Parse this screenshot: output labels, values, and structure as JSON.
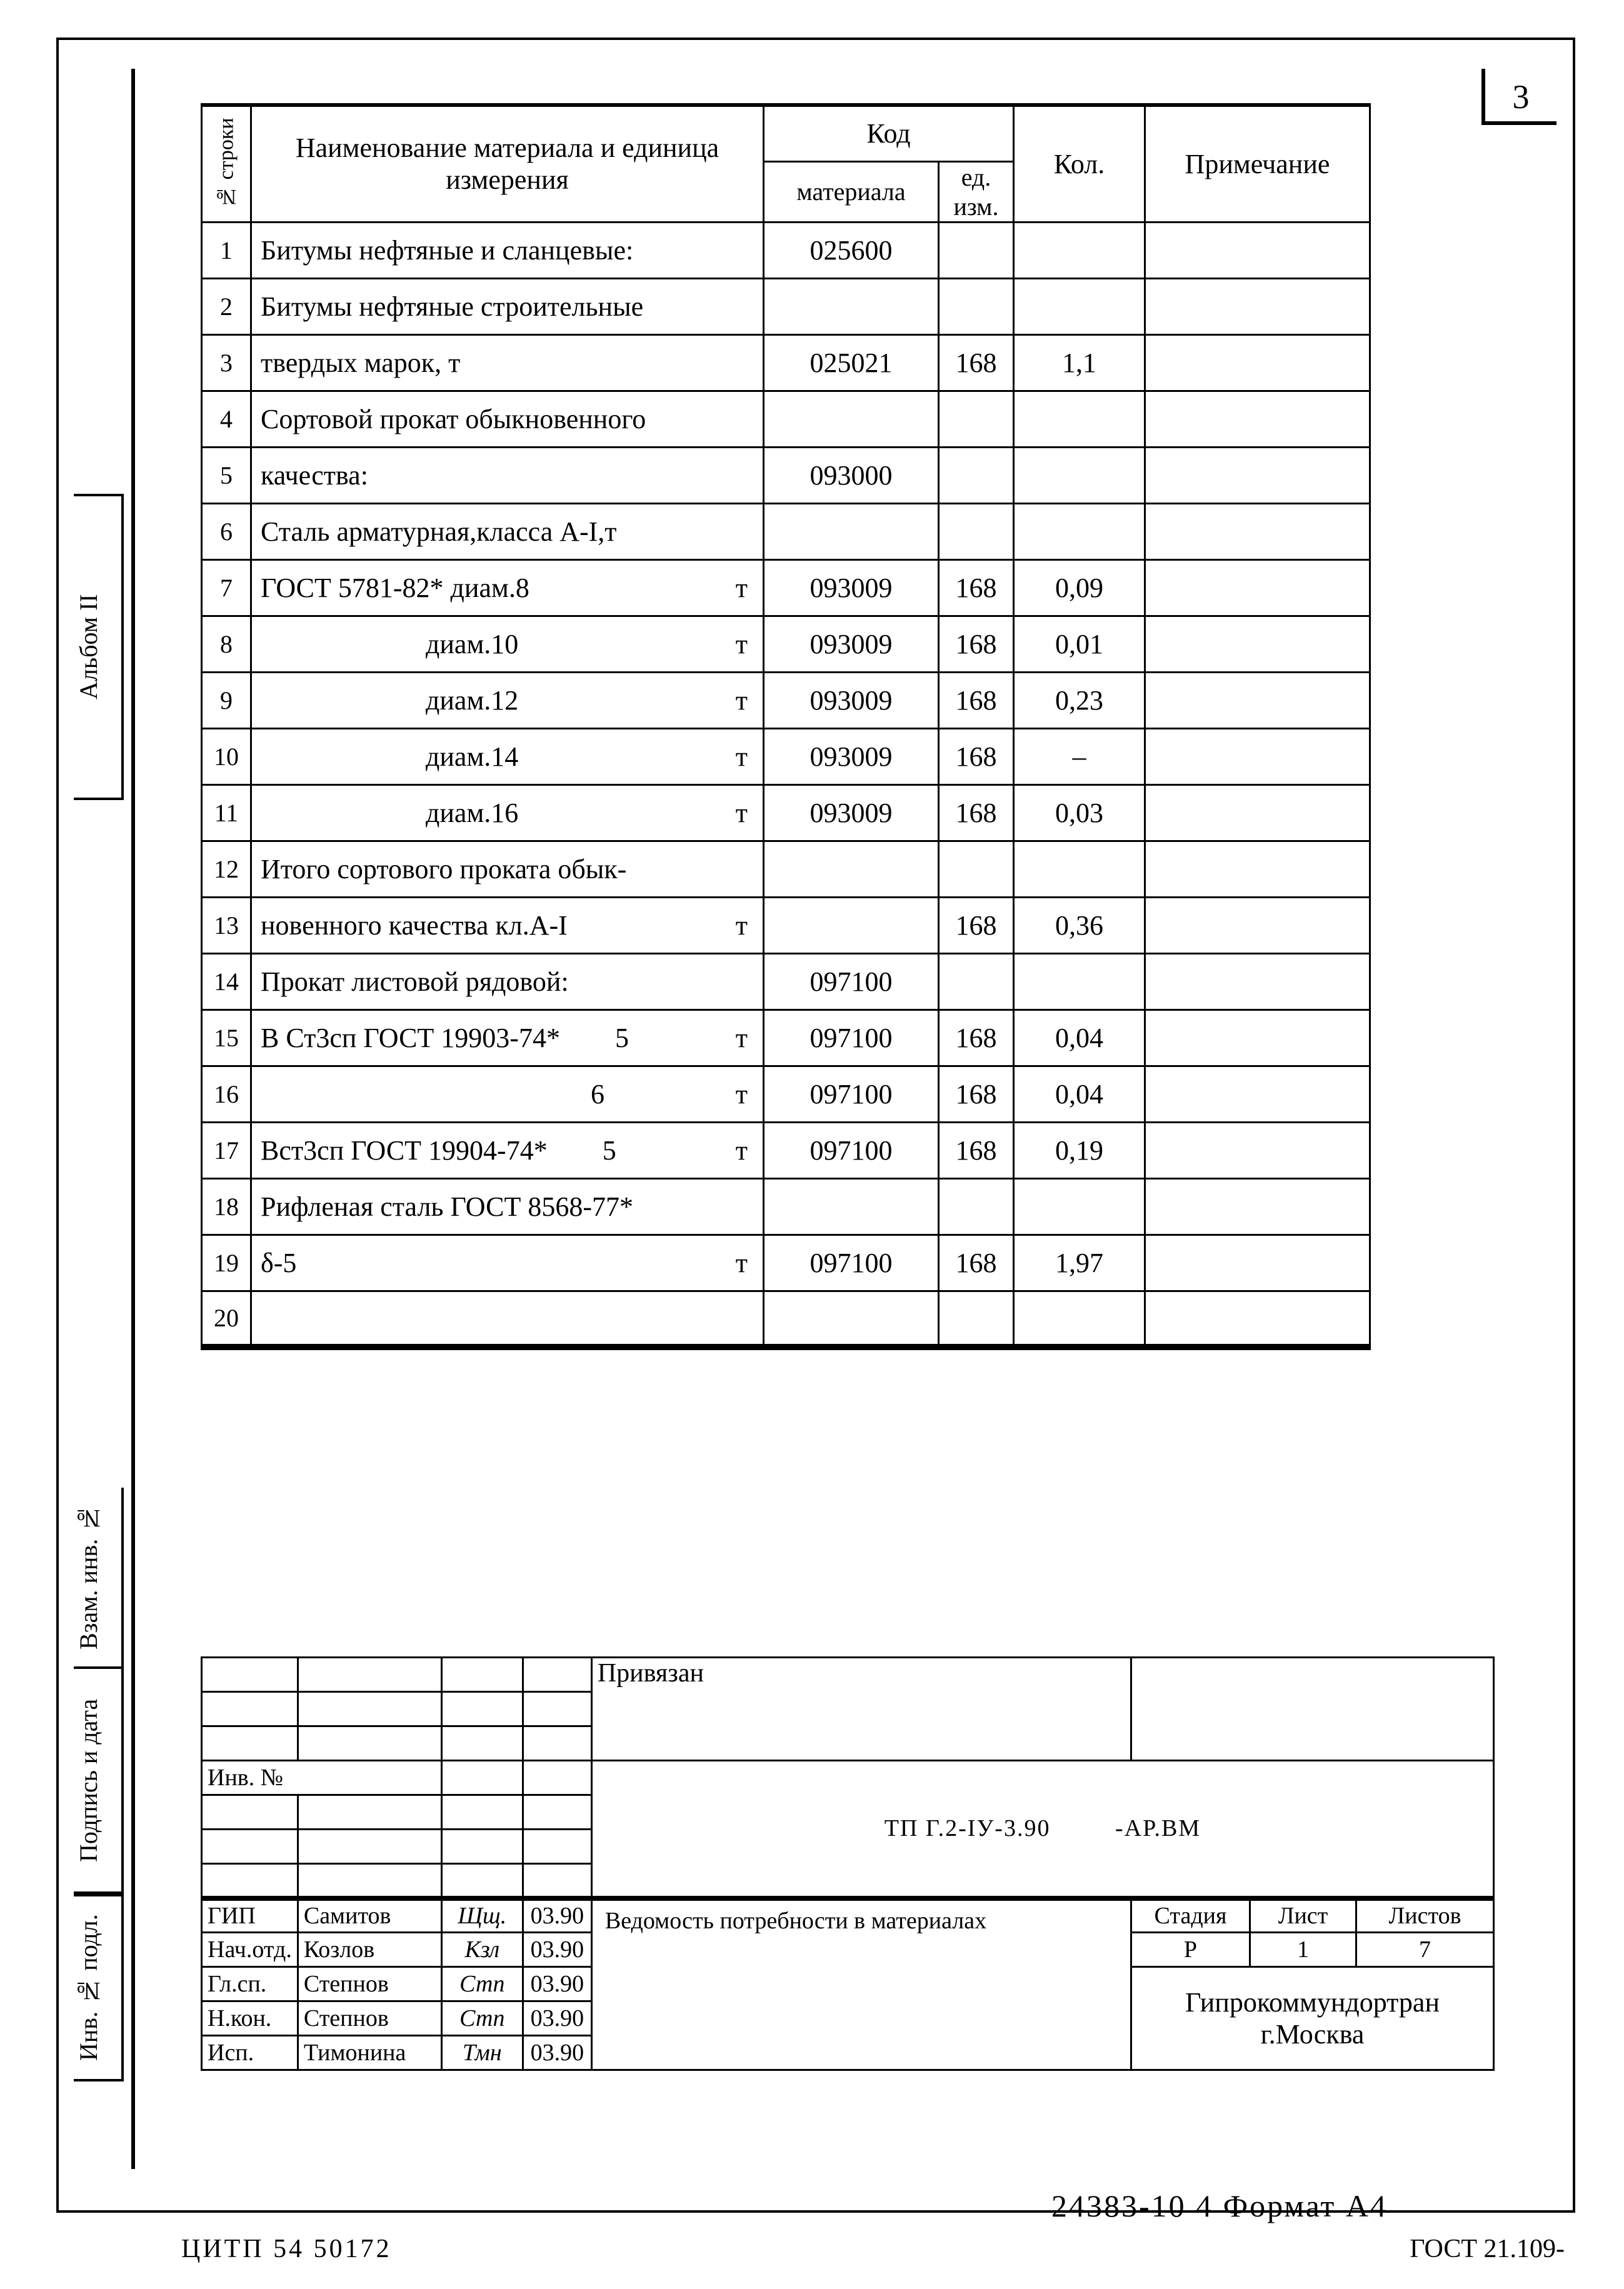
{
  "page_number": "3",
  "side": {
    "album": "Альбом II",
    "vzam": "Взам. инв. №",
    "podp": "Подпись и дата",
    "invp": "Инв. № подл."
  },
  "table": {
    "head": {
      "stroki": "№ строки",
      "name": "Наименование материала и единица измерения",
      "kod": "Код",
      "kod_material": "материала",
      "kod_ed": "ед. изм.",
      "kol": "Кол.",
      "prim": "Примечание"
    },
    "rows": [
      {
        "n": "1",
        "name": "Битумы нефтяные и сланцевые:",
        "unit": "",
        "mat": "025600",
        "ed": "",
        "kol": "",
        "prim": ""
      },
      {
        "n": "2",
        "name": "Битумы нефтяные строительные",
        "unit": "",
        "mat": "",
        "ed": "",
        "kol": "",
        "prim": ""
      },
      {
        "n": "3",
        "name": "твердых марок, т",
        "unit": "",
        "mat": "025021",
        "ed": "168",
        "kol": "1,1",
        "prim": ""
      },
      {
        "n": "4",
        "name": "Сортовой прокат обыкновенного",
        "unit": "",
        "mat": "",
        "ed": "",
        "kol": "",
        "prim": ""
      },
      {
        "n": "5",
        "name": "качества:",
        "unit": "",
        "mat": "093000",
        "ed": "",
        "kol": "",
        "prim": ""
      },
      {
        "n": "6",
        "name": "Сталь арматурная,класса А-I,т",
        "unit": "",
        "mat": "",
        "ed": "",
        "kol": "",
        "prim": ""
      },
      {
        "n": "7",
        "name": "ГОСТ 5781-82* диам.8",
        "unit": "т",
        "mat": "093009",
        "ed": "168",
        "kol": "0,09",
        "prim": ""
      },
      {
        "n": "8",
        "name": "      диам.10",
        "unit": "т",
        "mat": "093009",
        "ed": "168",
        "kol": "0,01",
        "prim": ""
      },
      {
        "n": "9",
        "name": "      диам.12",
        "unit": "т",
        "mat": "093009",
        "ed": "168",
        "kol": "0,23",
        "prim": ""
      },
      {
        "n": "10",
        "name": "      диам.14",
        "unit": "т",
        "mat": "093009",
        "ed": "168",
        "kol": "–",
        "prim": ""
      },
      {
        "n": "11",
        "name": "      диам.16",
        "unit": "т",
        "mat": "093009",
        "ed": "168",
        "kol": "0,03",
        "prim": ""
      },
      {
        "n": "12",
        "name": "Итого сортового проката обык-",
        "unit": "",
        "mat": "",
        "ed": "",
        "kol": "",
        "prim": ""
      },
      {
        "n": "13",
        "name": "новенного качества кл.А-I",
        "unit": "т",
        "mat": "",
        "ed": "168",
        "kol": "0,36",
        "prim": ""
      },
      {
        "n": "14",
        "name": "Прокат листовой рядовой:",
        "unit": "",
        "mat": "097100",
        "ed": "",
        "kol": "",
        "prim": ""
      },
      {
        "n": "15",
        "name": "В Ст3сп ГОСТ 19903-74*  5",
        "unit": "т",
        "mat": "097100",
        "ed": "168",
        "kol": "0,04",
        "prim": ""
      },
      {
        "n": "16",
        "name": "            6",
        "unit": "т",
        "mat": "097100",
        "ed": "168",
        "kol": "0,04",
        "prim": ""
      },
      {
        "n": "17",
        "name": "Вст3сп ГОСТ 19904-74*  5",
        "unit": "т",
        "mat": "097100",
        "ed": "168",
        "kol": "0,19",
        "prim": ""
      },
      {
        "n": "18",
        "name": "Рифленая сталь ГОСТ 8568-77*",
        "unit": "",
        "mat": "",
        "ed": "",
        "kol": "",
        "prim": ""
      },
      {
        "n": "19",
        "name": "δ-5",
        "unit": "т",
        "mat": "097100",
        "ed": "168",
        "kol": "1,97",
        "prim": ""
      },
      {
        "n": "20",
        "name": "",
        "unit": "",
        "mat": "",
        "ed": "",
        "kol": "",
        "prim": ""
      }
    ]
  },
  "titleblock": {
    "privyazan": "Привязан",
    "inv_no": "Инв. №",
    "doc_code": "ТП Г.2-IУ-3.90",
    "doc_suffix": "-АР.ВМ",
    "title": "Ведомость потребности в материалах",
    "stadiya_h": "Стадия",
    "list_h": "Лист",
    "listov_h": "Листов",
    "stadiya": "Р",
    "list": "1",
    "listov": "7",
    "org": "Гипрокоммундортран г.Москва",
    "roles": [
      {
        "role": "ГИП",
        "name": "Самитов",
        "sig": "Щщ.",
        "date": "03.90"
      },
      {
        "role": "Нач.отд.",
        "name": "Козлов",
        "sig": "Кзл",
        "date": "03.90"
      },
      {
        "role": "Гл.сп.",
        "name": "Степнов",
        "sig": "Стп",
        "date": "03.90"
      },
      {
        "role": "Н.кон.",
        "name": "Степнов",
        "sig": "Стп",
        "date": "03.90"
      },
      {
        "role": "Исп.",
        "name": "Тимонина",
        "sig": "Тмн",
        "date": "03.90"
      }
    ]
  },
  "footer": {
    "left": "ЦИТП 54 50172",
    "right": "ГОСТ 21.109-",
    "docnum": "24383-10  4   Формат А4"
  },
  "colors": {
    "line": "#000000",
    "bg": "#ffffff"
  }
}
